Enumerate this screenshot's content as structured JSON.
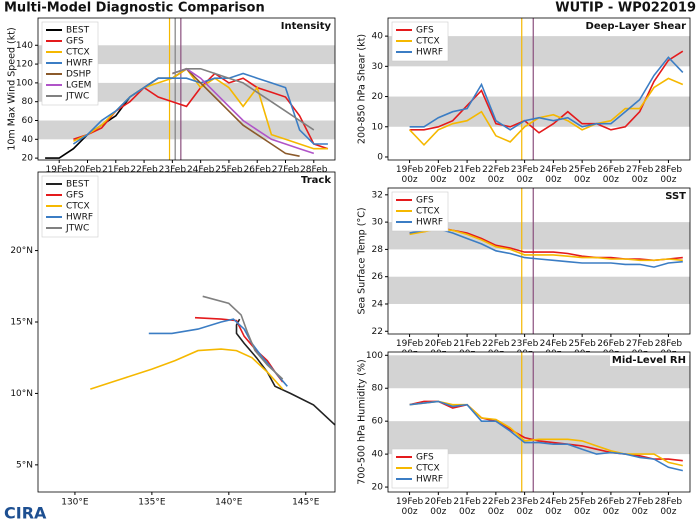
{
  "header": {
    "title": "Multi-Model Diagnostic Comparison",
    "storm": "WUTIP - WP022019",
    "logo": "CIRA"
  },
  "chart_data": [
    {
      "type": "line",
      "title": "Intensity",
      "y_label": "10m Max Wind Speed (kt)",
      "categories": [
        null,
        "19Feb 00z",
        null,
        "20Feb 00z",
        null,
        "21Feb 00z",
        null,
        "22Feb 00z",
        null,
        "23Feb 00z",
        null,
        "24Feb 00z",
        null,
        "25Feb 00z",
        null,
        "26Feb 00z",
        null,
        "27Feb 00z",
        null,
        "28Feb 00z",
        null
      ],
      "ylim": [
        18,
        169
      ],
      "yticks": [
        20,
        40,
        60,
        80,
        100,
        120,
        140
      ],
      "bands": [
        [
          40,
          60
        ],
        [
          80,
          100
        ],
        [
          120,
          140
        ]
      ],
      "legend": "upper left",
      "series": [
        {
          "name": "BEST",
          "color": "#000000",
          "values": [
            20,
            20,
            30,
            45,
            55,
            65,
            85,
            95,
            105,
            105,
            115,
            null,
            null,
            null,
            null,
            null,
            null,
            null,
            null,
            null,
            null
          ]
        },
        {
          "name": "GFS",
          "color": "#e41a1c",
          "values": [
            null,
            null,
            40,
            45,
            52,
            70,
            80,
            95,
            85,
            80,
            75,
            95,
            110,
            100,
            105,
            95,
            90,
            85,
            65,
            35,
            30
          ]
        },
        {
          "name": "CTCX",
          "color": "#f5b800",
          "values": [
            null,
            null,
            38,
            45,
            55,
            70,
            85,
            95,
            100,
            105,
            115,
            95,
            105,
            95,
            75,
            95,
            45,
            40,
            35,
            30,
            30
          ]
        },
        {
          "name": "HWRF",
          "color": "#3b7dc4",
          "values": [
            null,
            null,
            35,
            45,
            60,
            70,
            85,
            95,
            105,
            105,
            105,
            100,
            105,
            105,
            110,
            105,
            100,
            95,
            50,
            35,
            35
          ]
        },
        {
          "name": "DSHP",
          "color": "#8b5a2b",
          "values": [
            null,
            null,
            null,
            null,
            null,
            null,
            null,
            null,
            null,
            110,
            115,
            100,
            85,
            70,
            55,
            45,
            35,
            25,
            22,
            null,
            null
          ]
        },
        {
          "name": "LGEM",
          "color": "#b054c8",
          "values": [
            null,
            null,
            null,
            null,
            null,
            null,
            null,
            null,
            null,
            110,
            115,
            105,
            90,
            75,
            60,
            50,
            40,
            35,
            30,
            25,
            null
          ]
        },
        {
          "name": "JTWC",
          "color": "#808080",
          "values": [
            null,
            null,
            null,
            null,
            null,
            null,
            null,
            null,
            null,
            110,
            115,
            115,
            110,
            105,
            100,
            90,
            80,
            70,
            60,
            50,
            null
          ]
        }
      ]
    },
    {
      "type": "track",
      "title": "Track",
      "xlim": [
        127.6,
        146.9
      ],
      "ylim": [
        3.1,
        25.5
      ],
      "xticks": [
        {
          "value": 130,
          "label": "130°E"
        },
        {
          "value": 135,
          "label": "135°E"
        },
        {
          "value": 140,
          "label": "140°E"
        },
        {
          "value": 145,
          "label": "145°E"
        }
      ],
      "yticks": [
        {
          "value": 5,
          "label": "5°N"
        },
        {
          "value": 10,
          "label": "10°N"
        },
        {
          "value": 15,
          "label": "15°N"
        },
        {
          "value": 20,
          "label": "20°N"
        }
      ],
      "legend": "upper left",
      "series": [
        {
          "name": "BEST",
          "color": "#222222",
          "x": [
            146.9,
            145.5,
            144,
            143,
            142.5,
            141.8,
            141,
            140.5,
            140.5,
            140.7
          ],
          "values": [
            7.8,
            9.2,
            10,
            10.5,
            11.5,
            12.5,
            13.5,
            14.2,
            14.8,
            15.2
          ]
        },
        {
          "name": "GFS",
          "color": "#e41a1c",
          "x": [
            137.8,
            139.5,
            140.5,
            141,
            141.8,
            142.5,
            143,
            143.5
          ],
          "values": [
            15.3,
            15.2,
            15.1,
            14,
            13,
            12.3,
            11.5,
            10.8
          ]
        },
        {
          "name": "CTCX",
          "color": "#f5b800",
          "x": [
            131,
            133,
            135,
            136.5,
            138,
            139.5,
            140.5,
            141.5,
            142.5,
            143.5
          ],
          "values": [
            10.3,
            11,
            11.7,
            12.3,
            13,
            13.1,
            13,
            12.5,
            11.5,
            10.3
          ]
        },
        {
          "name": "HWRF",
          "color": "#3b7dc4",
          "x": [
            134.8,
            136.3,
            138,
            139.5,
            140.3,
            141,
            141.5,
            142.2,
            143,
            143.8
          ],
          "values": [
            14.2,
            14.2,
            14.5,
            15,
            15.2,
            14.5,
            13.5,
            12.5,
            11.5,
            10.5
          ]
        },
        {
          "name": "JTWC",
          "color": "#808080",
          "x": [
            138.3,
            140,
            140.8,
            141.2,
            141.7,
            142.5,
            143.5
          ],
          "values": [
            16.8,
            16.3,
            15.5,
            14.3,
            13,
            12,
            11
          ]
        }
      ]
    },
    {
      "type": "line",
      "title": "Deep-Layer Shear",
      "y_label": "200-850 hPa Shear (kt)",
      "categories": [
        null,
        "19Feb 00z",
        null,
        "20Feb 00z",
        null,
        "21Feb 00z",
        null,
        "22Feb 00z",
        null,
        "23Feb 00z",
        null,
        "24Feb 00z",
        null,
        "25Feb 00z",
        null,
        "26Feb 00z",
        null,
        "27Feb 00z",
        null,
        "28Feb 00z",
        null
      ],
      "ylim": [
        -1,
        46
      ],
      "yticks": [
        0,
        10,
        20,
        30,
        40
      ],
      "bands": [
        [
          10,
          20
        ],
        [
          30,
          40
        ]
      ],
      "legend": "upper left",
      "series": [
        {
          "name": "GFS",
          "color": "#e41a1c",
          "values": [
            null,
            9,
            9,
            10,
            12,
            17,
            22,
            11,
            10,
            12,
            8,
            11,
            15,
            11,
            11,
            9,
            10,
            15,
            25,
            32,
            35
          ]
        },
        {
          "name": "CTCX",
          "color": "#f5b800",
          "values": [
            null,
            9,
            4,
            9,
            11,
            12,
            15,
            7,
            5,
            10,
            13,
            14,
            12,
            9,
            11,
            12,
            16,
            16,
            23,
            26,
            24
          ]
        },
        {
          "name": "HWRF",
          "color": "#3b7dc4",
          "values": [
            null,
            10,
            10,
            13,
            15,
            16,
            24,
            12,
            9,
            12,
            13,
            12,
            13,
            10,
            11,
            11,
            15,
            19,
            27,
            33,
            28
          ]
        }
      ]
    },
    {
      "type": "line",
      "title": "SST",
      "y_label": "Sea Surface Temp (°C)",
      "categories": [
        null,
        "19Feb 00z",
        null,
        "20Feb 00z",
        null,
        "21Feb 00z",
        null,
        "22Feb 00z",
        null,
        "23Feb 00z",
        null,
        "24Feb 00z",
        null,
        "25Feb 00z",
        null,
        "26Feb 00z",
        null,
        "27Feb 00z",
        null,
        "28Feb 00z",
        null
      ],
      "ylim": [
        21.8,
        32.5
      ],
      "yticks": [
        22,
        24,
        26,
        28,
        30,
        32
      ],
      "bands": [
        [
          24,
          26
        ],
        [
          28,
          30
        ]
      ],
      "legend": "upper left",
      "series": [
        {
          "name": "GFS",
          "color": "#e41a1c",
          "values": [
            null,
            29.2,
            29.3,
            29.6,
            29.4,
            29.2,
            28.8,
            28.3,
            28.1,
            27.8,
            27.8,
            27.8,
            27.7,
            27.5,
            27.4,
            27.4,
            27.3,
            27.3,
            27.2,
            27.3,
            27.4
          ]
        },
        {
          "name": "CTCX",
          "color": "#f5b800",
          "values": [
            null,
            29.1,
            29.3,
            29.5,
            29.4,
            29.1,
            28.7,
            28.2,
            28.0,
            27.6,
            27.6,
            27.6,
            27.5,
            27.4,
            27.4,
            27.3,
            27.3,
            27.2,
            27.2,
            27.3,
            27.2
          ]
        },
        {
          "name": "HWRF",
          "color": "#3b7dc4",
          "values": [
            null,
            29.2,
            29.4,
            29.5,
            29.2,
            28.8,
            28.4,
            27.9,
            27.7,
            27.4,
            27.3,
            27.2,
            27.1,
            27.0,
            27.0,
            27.0,
            26.9,
            26.9,
            26.7,
            27.0,
            27.1
          ]
        }
      ]
    },
    {
      "type": "line",
      "title": "Mid-Level RH",
      "y_label": "700-500 hPa Humidity (%)",
      "categories": [
        null,
        "19Feb 00z",
        null,
        "20Feb 00z",
        null,
        "21Feb 00z",
        null,
        "22Feb 00z",
        null,
        "23Feb 00z",
        null,
        "24Feb 00z",
        null,
        "25Feb 00z",
        null,
        "26Feb 00z",
        null,
        "27Feb 00z",
        null,
        "28Feb 00z",
        null
      ],
      "ylim": [
        17,
        102
      ],
      "yticks": [
        20,
        40,
        60,
        80,
        100
      ],
      "bands": [
        [
          40,
          60
        ],
        [
          80,
          100
        ]
      ],
      "legend": "lower left",
      "series": [
        {
          "name": "GFS",
          "color": "#e41a1c",
          "values": [
            null,
            70,
            72,
            72,
            68,
            70,
            62,
            60,
            55,
            50,
            48,
            47,
            46,
            45,
            43,
            41,
            40,
            39,
            37,
            37,
            36
          ]
        },
        {
          "name": "CTCX",
          "color": "#f5b800",
          "values": [
            null,
            70,
            71,
            72,
            70,
            70,
            62,
            61,
            56,
            48,
            49,
            49,
            49,
            48,
            45,
            42,
            40,
            40,
            40,
            35,
            33
          ]
        },
        {
          "name": "HWRF",
          "color": "#3b7dc4",
          "values": [
            null,
            70,
            71,
            72,
            69,
            70,
            60,
            60,
            54,
            47,
            47,
            46,
            46,
            43,
            40,
            41,
            40,
            38,
            37,
            32,
            30
          ]
        }
      ]
    }
  ]
}
